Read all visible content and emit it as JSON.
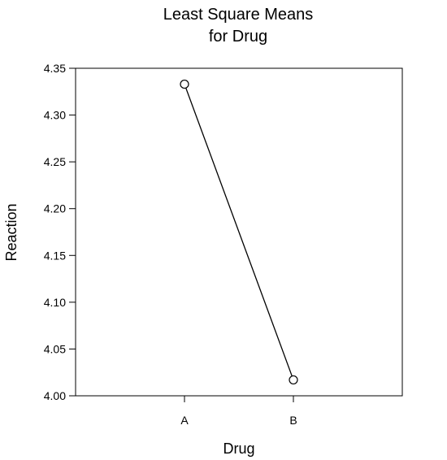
{
  "chart_data": {
    "type": "line",
    "title_lines": [
      "Least Square Means",
      "for Drug"
    ],
    "xlabel": "Drug",
    "ylabel": "Reaction",
    "categories": [
      "A",
      "B"
    ],
    "series": [
      {
        "values": [
          4.333,
          4.017
        ]
      }
    ],
    "ylim": [
      4.0,
      4.35
    ],
    "yticks": [
      "4.00",
      "4.05",
      "4.10",
      "4.15",
      "4.20",
      "4.25",
      "4.30",
      "4.35"
    ],
    "grid": false,
    "legend": "none",
    "colors": {
      "line": "#000000",
      "marker_fill": "#ffffff",
      "axes": "#000000"
    }
  }
}
